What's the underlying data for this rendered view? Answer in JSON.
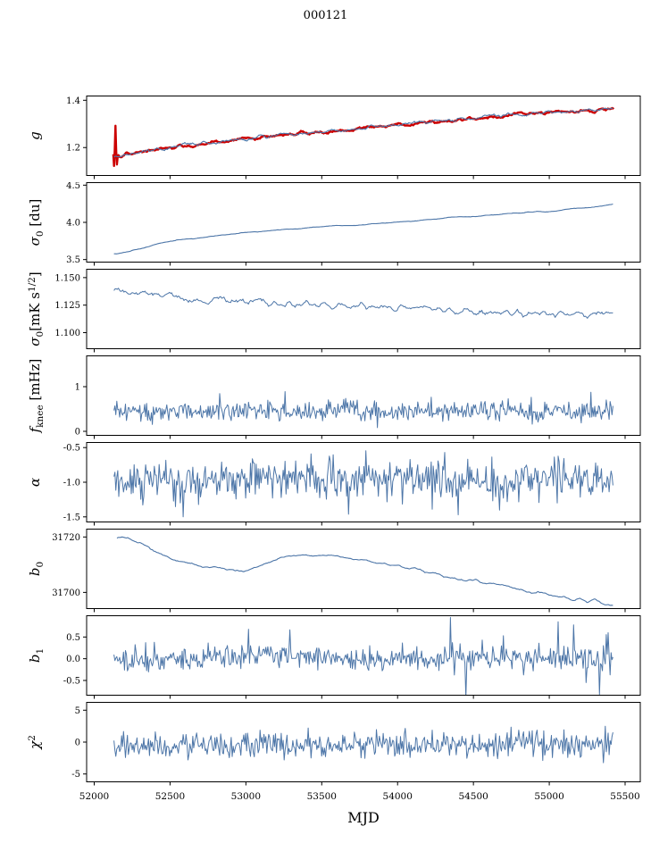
{
  "title": "000121",
  "colors": {
    "line": "#4d76a8",
    "overlay": "#cc0000",
    "axis": "#000000"
  },
  "x_axis": {
    "label": "MJD",
    "lim": [
      51950,
      55600
    ],
    "ticks": [
      52000,
      52500,
      53000,
      53500,
      54000,
      54500,
      55000,
      55500
    ],
    "tick_labels": [
      "52000",
      "52500",
      "53000",
      "53500",
      "54000",
      "54500",
      "55000",
      "55500"
    ]
  },
  "chart_data": [
    {
      "key": "g",
      "type": "line",
      "ylabel_parts": [
        {
          "t": "g",
          "italic": true
        }
      ],
      "ylim": [
        1.08,
        1.42
      ],
      "ytick_vals": [
        1.2,
        1.4
      ],
      "ytick_labels": [
        "1.2",
        "1.4"
      ],
      "series": [
        {
          "name": "g-data-red",
          "color": "#cc0000",
          "width": 2.4,
          "seed": 101,
          "n": 700,
          "xrange": [
            52126,
            55424
          ],
          "noise": 0.012,
          "smooth": 4,
          "trend": [
            [
              52126,
              1.168
            ],
            [
              52132,
              1.105
            ],
            [
              52140,
              1.29
            ],
            [
              52148,
              1.115
            ],
            [
              52156,
              1.165
            ],
            [
              52250,
              1.175
            ],
            [
              52400,
              1.19
            ],
            [
              52550,
              1.205
            ],
            [
              52700,
              1.216
            ],
            [
              52850,
              1.226
            ],
            [
              53000,
              1.236
            ],
            [
              53150,
              1.246
            ],
            [
              53300,
              1.258
            ],
            [
              53450,
              1.265
            ],
            [
              53600,
              1.272
            ],
            [
              53750,
              1.281
            ],
            [
              53900,
              1.29
            ],
            [
              54050,
              1.3
            ],
            [
              54200,
              1.308
            ],
            [
              54350,
              1.317
            ],
            [
              54500,
              1.325
            ],
            [
              54650,
              1.332
            ],
            [
              54800,
              1.34
            ],
            [
              54950,
              1.347
            ],
            [
              55050,
              1.352
            ],
            [
              55120,
              1.349
            ],
            [
              55200,
              1.36
            ],
            [
              55300,
              1.356
            ],
            [
              55360,
              1.366
            ],
            [
              55424,
              1.366
            ]
          ]
        },
        {
          "name": "g-fit-blue",
          "color": "#4d76a8",
          "width": 1.1,
          "seed": 102,
          "n": 700,
          "xrange": [
            52130,
            55420
          ],
          "noise": 0.012,
          "smooth": 4,
          "trend": [
            [
              52130,
              1.158
            ],
            [
              52250,
              1.175
            ],
            [
              52400,
              1.19
            ],
            [
              52550,
              1.205
            ],
            [
              52700,
              1.216
            ],
            [
              52850,
              1.226
            ],
            [
              53000,
              1.236
            ],
            [
              53150,
              1.246
            ],
            [
              53300,
              1.258
            ],
            [
              53450,
              1.265
            ],
            [
              53600,
              1.272
            ],
            [
              53750,
              1.281
            ],
            [
              53900,
              1.29
            ],
            [
              54050,
              1.3
            ],
            [
              54200,
              1.308
            ],
            [
              54350,
              1.317
            ],
            [
              54500,
              1.325
            ],
            [
              54650,
              1.332
            ],
            [
              54800,
              1.34
            ],
            [
              54950,
              1.347
            ],
            [
              55050,
              1.352
            ],
            [
              55120,
              1.349
            ],
            [
              55200,
              1.36
            ],
            [
              55300,
              1.356
            ],
            [
              55360,
              1.366
            ],
            [
              55420,
              1.366
            ]
          ]
        }
      ]
    },
    {
      "key": "sigma0_du",
      "type": "line",
      "ylabel_parts": [
        {
          "t": "σ",
          "italic": true
        },
        {
          "t": "0",
          "pos": "sub"
        },
        {
          "t": " [du]"
        }
      ],
      "ylim": [
        3.46,
        4.54
      ],
      "ytick_vals": [
        3.5,
        4.0,
        4.5
      ],
      "ytick_labels": [
        "3.5",
        "4.0",
        "4.5"
      ],
      "series": [
        {
          "name": "sigma0-du",
          "color": "#4d76a8",
          "width": 1.1,
          "seed": 201,
          "n": 400,
          "xrange": [
            52130,
            55420
          ],
          "noise": 0.015,
          "smooth": 6,
          "trend": [
            [
              52130,
              3.575
            ],
            [
              52200,
              3.6
            ],
            [
              52300,
              3.645
            ],
            [
              52400,
              3.7
            ],
            [
              52500,
              3.75
            ],
            [
              52600,
              3.77
            ],
            [
              52750,
              3.8
            ],
            [
              52900,
              3.84
            ],
            [
              53050,
              3.87
            ],
            [
              53200,
              3.895
            ],
            [
              53350,
              3.92
            ],
            [
              53500,
              3.945
            ],
            [
              53650,
              3.96
            ],
            [
              53800,
              3.975
            ],
            [
              53950,
              3.995
            ],
            [
              54100,
              4.02
            ],
            [
              54250,
              4.05
            ],
            [
              54400,
              4.075
            ],
            [
              54550,
              4.09
            ],
            [
              54700,
              4.11
            ],
            [
              54850,
              4.13
            ],
            [
              55000,
              4.15
            ],
            [
              55100,
              4.17
            ],
            [
              55200,
              4.19
            ],
            [
              55300,
              4.21
            ],
            [
              55420,
              4.25
            ]
          ]
        }
      ]
    },
    {
      "key": "sigma0_mK",
      "type": "line",
      "ylabel_parts": [
        {
          "t": "σ",
          "italic": true
        },
        {
          "t": "0",
          "pos": "sub"
        },
        {
          "t": "[mK s"
        },
        {
          "t": "1/2",
          "pos": "sup"
        },
        {
          "t": "]"
        }
      ],
      "ylim": [
        1.085,
        1.158
      ],
      "ytick_vals": [
        1.1,
        1.125,
        1.15
      ],
      "ytick_labels": [
        "1.100",
        "1.125",
        "1.150"
      ],
      "series": [
        {
          "name": "sigma0-mK",
          "color": "#4d76a8",
          "width": 1.0,
          "seed": 301,
          "n": 450,
          "xrange": [
            52130,
            55420
          ],
          "noise": 0.0035,
          "smooth": 2,
          "trend": [
            [
              52130,
              1.137
            ],
            [
              52300,
              1.136
            ],
            [
              52500,
              1.134
            ],
            [
              52600,
              1.13
            ],
            [
              52800,
              1.129
            ],
            [
              53000,
              1.129
            ],
            [
              53200,
              1.127
            ],
            [
              53400,
              1.125
            ],
            [
              53600,
              1.124
            ],
            [
              53800,
              1.124
            ],
            [
              54000,
              1.123
            ],
            [
              54200,
              1.122
            ],
            [
              54400,
              1.12
            ],
            [
              54600,
              1.119
            ],
            [
              54800,
              1.118
            ],
            [
              55000,
              1.118
            ],
            [
              55200,
              1.117
            ],
            [
              55420,
              1.117
            ]
          ]
        }
      ]
    },
    {
      "key": "f_knee",
      "type": "line",
      "ylabel_parts": [
        {
          "t": "f",
          "italic": true
        },
        {
          "t": "knee",
          "pos": "sub"
        },
        {
          "t": " [mHz]"
        }
      ],
      "ylim": [
        -0.1,
        1.7
      ],
      "ytick_vals": [
        0,
        1
      ],
      "ytick_labels": [
        "0",
        "1"
      ],
      "series": [
        {
          "name": "f-knee",
          "color": "#4d76a8",
          "width": 1.0,
          "seed": 401,
          "n": 520,
          "xrange": [
            52130,
            55420
          ],
          "noise": 0.11,
          "tail": {
            "p": 0.05,
            "mult": 2.0
          },
          "trend": [
            [
              52130,
              0.46
            ],
            [
              53200,
              0.44
            ],
            [
              54200,
              0.46
            ],
            [
              55420,
              0.44
            ]
          ]
        }
      ]
    },
    {
      "key": "alpha",
      "type": "line",
      "ylabel_parts": [
        {
          "t": "α",
          "italic": true
        }
      ],
      "ylim": [
        -1.58,
        -0.42
      ],
      "ytick_vals": [
        -1.5,
        -1.0,
        -0.5
      ],
      "ytick_labels": [
        "-1.5",
        "-1.0",
        "-0.5"
      ],
      "series": [
        {
          "name": "alpha",
          "color": "#4d76a8",
          "width": 1.0,
          "seed": 501,
          "n": 520,
          "xrange": [
            52130,
            55420
          ],
          "noise": 0.14,
          "tail": {
            "p": 0.05,
            "mult": 1.9
          },
          "spikes": [
            [
              54400,
              -1.47
            ]
          ],
          "trend": [
            [
              52130,
              -0.95
            ],
            [
              55420,
              -0.95
            ]
          ]
        }
      ]
    },
    {
      "key": "b0",
      "type": "line",
      "ylabel_parts": [
        {
          "t": "b",
          "italic": true
        },
        {
          "t": "0",
          "pos": "sub"
        }
      ],
      "ylim": [
        31694,
        31723
      ],
      "ytick_vals": [
        31700,
        31720
      ],
      "ytick_labels": [
        "31700",
        "31720"
      ],
      "series": [
        {
          "name": "b0",
          "color": "#4d76a8",
          "width": 1.1,
          "seed": 601,
          "n": 420,
          "xrange": [
            52150,
            55420
          ],
          "noise": 0.8,
          "smooth": 4,
          "trend": [
            [
              52150,
              31720
            ],
            [
              52230,
              31719.6
            ],
            [
              52300,
              31718.2
            ],
            [
              52380,
              31715.5
            ],
            [
              52450,
              31713.2
            ],
            [
              52550,
              31711.3
            ],
            [
              52650,
              31710.2
            ],
            [
              52800,
              31708.8
            ],
            [
              52950,
              31707.6
            ],
            [
              53000,
              31707.8
            ],
            [
              53100,
              31710
            ],
            [
              53200,
              31711.8
            ],
            [
              53300,
              31713
            ],
            [
              53400,
              31713.4
            ],
            [
              53500,
              31713.2
            ],
            [
              53600,
              31713
            ],
            [
              53700,
              31712.4
            ],
            [
              53800,
              31711.6
            ],
            [
              53900,
              31710.6
            ],
            [
              54000,
              31709.6
            ],
            [
              54100,
              31708.6
            ],
            [
              54200,
              31707.4
            ],
            [
              54300,
              31706.2
            ],
            [
              54400,
              31705.2
            ],
            [
              54500,
              31704.2
            ],
            [
              54600,
              31703.2
            ],
            [
              54700,
              31702.2
            ],
            [
              54800,
              31701.2
            ],
            [
              54900,
              31700.2
            ],
            [
              55000,
              31699.2
            ],
            [
              55100,
              31698.4
            ],
            [
              55150,
              31697.2
            ],
            [
              55200,
              31698
            ],
            [
              55250,
              31696.6
            ],
            [
              55300,
              31697.4
            ],
            [
              55350,
              31695.9
            ],
            [
              55420,
              31695.6
            ]
          ]
        }
      ]
    },
    {
      "key": "b1",
      "type": "line",
      "ylabel_parts": [
        {
          "t": "b",
          "italic": true
        },
        {
          "t": "1",
          "pos": "sub"
        }
      ],
      "ylim": [
        -0.85,
        1.0
      ],
      "ytick_vals": [
        -0.5,
        0.0,
        0.5
      ],
      "ytick_labels": [
        "-0.5",
        "0.0",
        "0.5"
      ],
      "series": [
        {
          "name": "b1",
          "color": "#4d76a8",
          "width": 1.0,
          "seed": 701,
          "n": 520,
          "xrange": [
            52130,
            55420
          ],
          "noise": 0.13,
          "tail": {
            "p": 0.05,
            "mult": 2.2
          },
          "spikes": [
            [
              53020,
              0.68
            ],
            [
              54350,
              0.95
            ],
            [
              55060,
              0.85
            ],
            [
              55160,
              0.78
            ],
            [
              55240,
              -0.55
            ],
            [
              55330,
              -0.82
            ],
            [
              55390,
              0.6
            ]
          ],
          "trend": [
            [
              52130,
              0.02
            ],
            [
              52350,
              -0.07
            ],
            [
              52600,
              -0.03
            ],
            [
              52900,
              0.04
            ],
            [
              53200,
              0.06
            ],
            [
              53600,
              0.02
            ],
            [
              54000,
              0.0
            ],
            [
              54500,
              0.02
            ],
            [
              55000,
              0.0
            ],
            [
              55420,
              0.04
            ]
          ]
        }
      ]
    },
    {
      "key": "chi2",
      "type": "line",
      "ylabel_parts": [
        {
          "t": "χ",
          "italic": true
        },
        {
          "t": "2",
          "pos": "sup"
        }
      ],
      "ylim": [
        -6.3,
        6.3
      ],
      "ytick_vals": [
        -5,
        0,
        5
      ],
      "ytick_labels": [
        "-5",
        "0",
        "5"
      ],
      "series": [
        {
          "name": "chi2",
          "color": "#4d76a8",
          "width": 1.0,
          "seed": 801,
          "n": 520,
          "xrange": [
            52130,
            55420
          ],
          "noise": 1.0,
          "tail": {
            "p": 0.04,
            "mult": 1.6
          },
          "trend": [
            [
              52130,
              -0.5
            ],
            [
              53500,
              -0.4
            ],
            [
              55420,
              -0.3
            ]
          ]
        }
      ]
    }
  ]
}
